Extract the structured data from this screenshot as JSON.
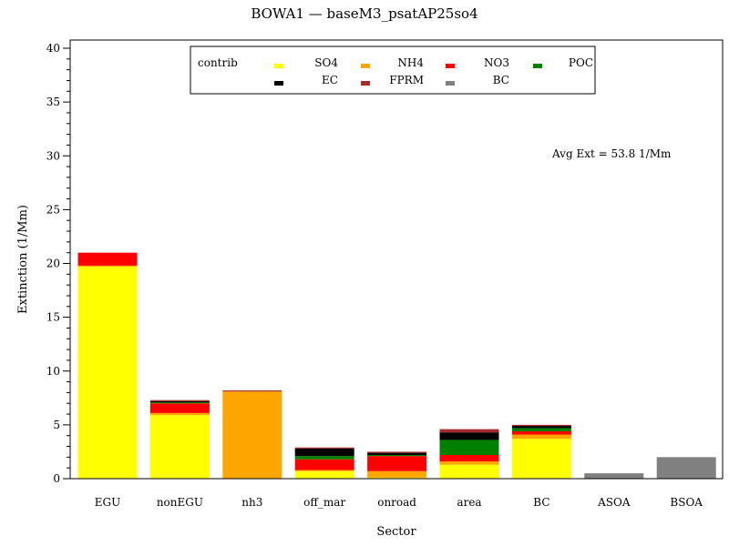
{
  "chart_data": {
    "type": "bar",
    "stacked": true,
    "title": "BOWA1 — baseM3_psatAP25so4",
    "xlabel": "Sector",
    "ylabel": "Extinction  (1/Mm)",
    "ylim": [
      0,
      40
    ],
    "yticks": [
      0,
      5,
      10,
      15,
      20,
      25,
      30,
      35,
      40
    ],
    "categories": [
      "EGU",
      "nonEGU",
      "nh3",
      "off_mar",
      "onroad",
      "area",
      "BC",
      "ASOA",
      "BSOA"
    ],
    "legend": {
      "title": "contrib",
      "placement": "top-center"
    },
    "annotation": "Avg Ext =  53.8 1/Mm",
    "series": [
      {
        "name": "SO4",
        "color": "#ffff00",
        "values": [
          19.7,
          5.9,
          0.0,
          0.7,
          0.1,
          1.3,
          3.7,
          0.0,
          0.0
        ]
      },
      {
        "name": "NH4",
        "color": "#ffa500",
        "values": [
          0.1,
          0.2,
          8.1,
          0.1,
          0.6,
          0.3,
          0.4,
          0.0,
          0.0
        ]
      },
      {
        "name": "NO3",
        "color": "#ff0000",
        "values": [
          1.2,
          0.9,
          0.0,
          1.0,
          1.4,
          0.6,
          0.3,
          0.0,
          0.0
        ]
      },
      {
        "name": "POC",
        "color": "#008000",
        "values": [
          0.0,
          0.1,
          0.0,
          0.3,
          0.1,
          1.4,
          0.3,
          0.0,
          0.0
        ]
      },
      {
        "name": "EC",
        "color": "#000000",
        "values": [
          0.0,
          0.1,
          0.0,
          0.7,
          0.2,
          0.7,
          0.2,
          0.0,
          0.0
        ]
      },
      {
        "name": "FPRM",
        "color": "#a52a2a",
        "values": [
          0.0,
          0.1,
          0.1,
          0.1,
          0.1,
          0.3,
          0.1,
          0.0,
          0.0
        ]
      },
      {
        "name": "BC",
        "color": "#808080",
        "values": [
          0.0,
          0.0,
          0.0,
          0.0,
          0.0,
          0.0,
          0.0,
          0.5,
          2.0
        ]
      }
    ]
  }
}
